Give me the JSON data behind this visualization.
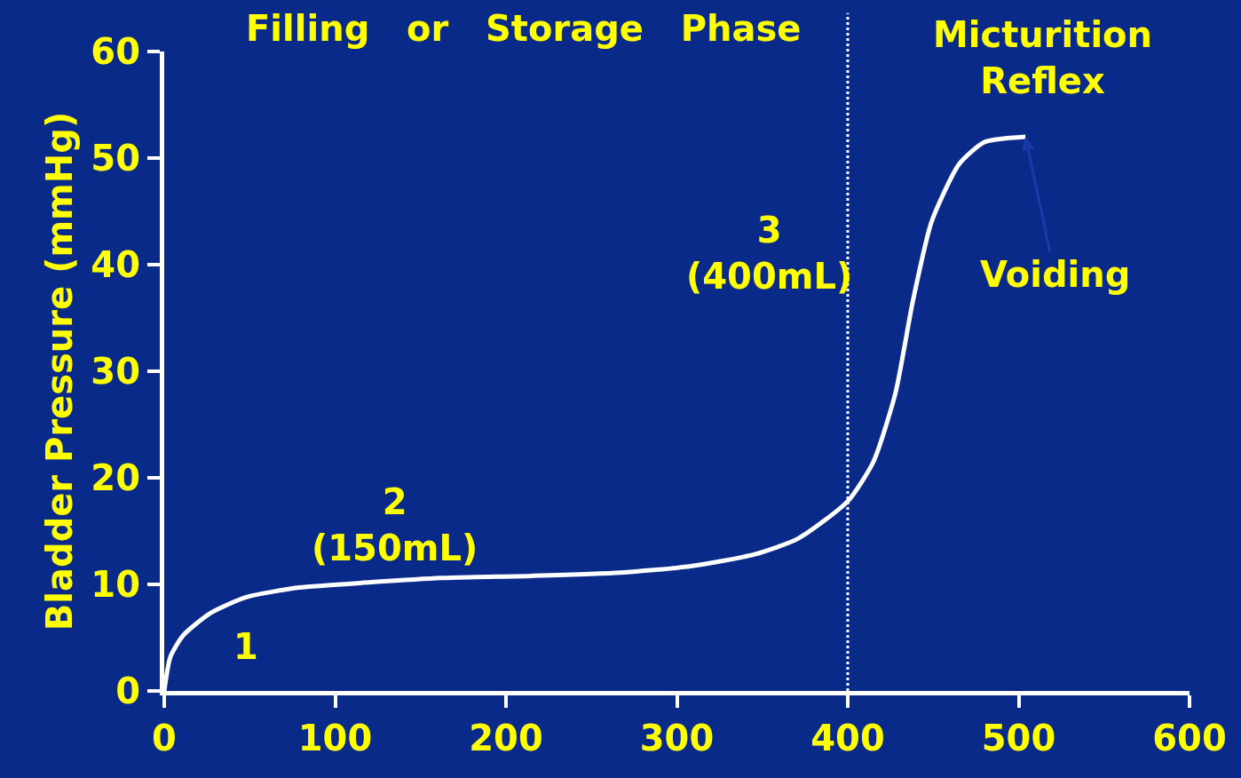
{
  "chart_data": {
    "type": "line",
    "ylabel": "Bladder Pressure (mmHg)",
    "x": [
      0,
      3.6,
      11,
      27,
      48,
      79,
      121,
      162,
      215,
      267,
      308,
      345,
      371,
      400,
      415,
      428,
      438,
      449,
      465,
      480,
      504
    ],
    "series": [
      {
        "color": "#ffffff",
        "values": [
          0,
          3.2,
          5.2,
          7.3,
          8.8,
          9.7,
          10.2,
          10.6,
          10.8,
          11.1,
          11.7,
          12.8,
          14.3,
          17.8,
          21.5,
          28,
          36.5,
          44,
          49.4,
          51.5,
          52
        ]
      }
    ],
    "xlim": [
      0,
      600
    ],
    "xticks": [
      0,
      100,
      200,
      300,
      400,
      500,
      600
    ],
    "ylim": [
      0,
      60
    ],
    "yticks": [
      0,
      10,
      20,
      30,
      40,
      50,
      60
    ],
    "grid": false,
    "marker": "none",
    "line_style": "solid",
    "ref_lines": [
      {
        "axis": "x",
        "value": 400,
        "color": "#ffffff",
        "line_style": "dotted"
      }
    ],
    "annotations": [
      "Filling   or   Storage   Phase",
      "Micturition\nReflex",
      "1",
      "2\n(150mL)",
      "3\n(400mL)",
      {
        "text": "Voiding",
        "x": 504,
        "y": 52
      }
    ]
  }
}
